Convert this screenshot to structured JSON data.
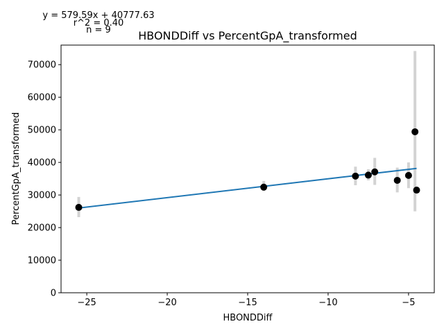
{
  "chart_data": {
    "type": "scatter",
    "title": "HBONDDiff vs PercentGpA_transformed",
    "xlabel": "HBONDDiff",
    "ylabel": "PercentGpA_transformed",
    "xlim": [
      -26.6,
      -3.4
    ],
    "ylim": [
      0,
      76000
    ],
    "xticks": [
      -25,
      -20,
      -15,
      -10,
      -5
    ],
    "xtick_labels": [
      "−25",
      "−20",
      "−15",
      "−10",
      "−5"
    ],
    "yticks": [
      0,
      10000,
      20000,
      30000,
      40000,
      50000,
      60000,
      70000
    ],
    "ytick_labels": [
      "0",
      "10000",
      "20000",
      "30000",
      "40000",
      "50000",
      "60000",
      "70000"
    ],
    "grid": false,
    "annotations": {
      "equation": "y = 579.59x + 40777.63",
      "r2": "r^2 = 0.40",
      "n": "n = 9"
    },
    "fit": {
      "slope": 579.59,
      "intercept": 40777.63,
      "x_range": [
        -25.5,
        -4.5
      ],
      "color": "#1f77b4"
    },
    "points": [
      {
        "x": -25.5,
        "y": 26200,
        "err_low": 23200,
        "err_high": 29400
      },
      {
        "x": -14.0,
        "y": 32400,
        "err_low": 31300,
        "err_high": 34300
      },
      {
        "x": -8.3,
        "y": 35800,
        "err_low": 33000,
        "err_high": 38700
      },
      {
        "x": -7.5,
        "y": 36100,
        "err_low": 34500,
        "err_high": 37900
      },
      {
        "x": -7.1,
        "y": 37100,
        "err_low": 33100,
        "err_high": 41400
      },
      {
        "x": -5.7,
        "y": 34500,
        "err_low": 30800,
        "err_high": 38400
      },
      {
        "x": -5.0,
        "y": 36000,
        "err_low": 32100,
        "err_high": 40000
      },
      {
        "x": -4.6,
        "y": 49400,
        "err_low": 25000,
        "err_high": 74200
      },
      {
        "x": -4.5,
        "y": 31500,
        "err_low": 30500,
        "err_high": 32500
      }
    ],
    "colors": {
      "points": "#000000",
      "errorbars": "#d3d3d3",
      "fit": "#1f77b4"
    }
  }
}
